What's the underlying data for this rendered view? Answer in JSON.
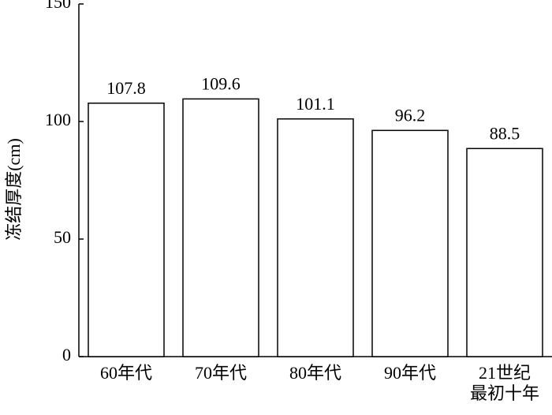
{
  "chart_data": {
    "type": "bar",
    "y_label": "冻结厚度(cm)",
    "categories": [
      "60年代",
      "70年代",
      "80年代",
      "90年代",
      "21世纪\n最初十年"
    ],
    "values": [
      107.8,
      109.6,
      101.1,
      96.2,
      88.5
    ],
    "color": "#ffffff",
    "edge_color": "#000000",
    "ylim": [
      0,
      150
    ],
    "yticks": [
      0,
      50,
      100,
      150
    ],
    "grid": false
  }
}
